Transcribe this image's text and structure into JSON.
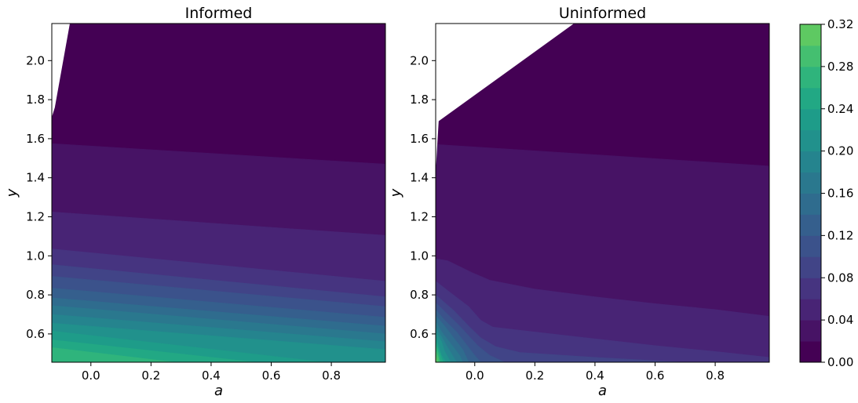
{
  "chart_data": [
    {
      "type": "contour",
      "title": "Informed",
      "xlabel": "a",
      "ylabel": "y",
      "xlim": [
        -0.13,
        0.98
      ],
      "ylim": [
        0.455,
        2.19
      ],
      "x_ticks": [
        "0.0",
        "0.2",
        "0.4",
        "0.6",
        "0.8"
      ],
      "y_ticks": [
        "0.6",
        "0.8",
        "1.0",
        "1.2",
        "1.4",
        "1.6",
        "1.8",
        "2.0"
      ],
      "undefined_region_boundary": [
        [
          -0.13,
          1.71
        ],
        [
          -0.12,
          1.76
        ],
        [
          -0.07,
          2.19
        ]
      ],
      "level_boundaries": [
        {
          "level": 0.02,
          "points": [
            [
              -0.13,
              1.575
            ],
            [
              0.98,
              1.47
            ]
          ]
        },
        {
          "level": 0.04,
          "points": [
            [
              -0.13,
              1.225
            ],
            [
              0.98,
              1.105
            ]
          ]
        },
        {
          "level": 0.06,
          "points": [
            [
              -0.13,
              1.035
            ],
            [
              0.98,
              0.87
            ]
          ]
        },
        {
          "level": 0.08,
          "points": [
            [
              -0.13,
              0.955
            ],
            [
              0.98,
              0.79
            ]
          ]
        },
        {
          "level": 0.1,
          "points": [
            [
              -0.13,
              0.895
            ],
            [
              0.98,
              0.74
            ]
          ]
        },
        {
          "level": 0.12,
          "points": [
            [
              -0.13,
              0.835
            ],
            [
              0.98,
              0.685
            ]
          ]
        },
        {
          "level": 0.14,
          "points": [
            [
              -0.13,
              0.785
            ],
            [
              0.98,
              0.64
            ]
          ]
        },
        {
          "level": 0.16,
          "points": [
            [
              -0.13,
              0.745
            ],
            [
              0.98,
              0.6
            ]
          ]
        },
        {
          "level": 0.18,
          "points": [
            [
              -0.13,
              0.7
            ],
            [
              0.98,
              0.56
            ]
          ]
        },
        {
          "level": 0.2,
          "points": [
            [
              -0.13,
              0.655
            ],
            [
              0.98,
              0.52
            ]
          ]
        },
        {
          "level": 0.22,
          "points": [
            [
              -0.13,
              0.615
            ],
            [
              0.78,
              0.455
            ]
          ]
        },
        {
          "level": 0.24,
          "points": [
            [
              -0.13,
              0.57
            ],
            [
              0.55,
              0.455
            ]
          ]
        },
        {
          "level": 0.26,
          "points": [
            [
              -0.13,
              0.53
            ],
            [
              0.28,
              0.455
            ]
          ]
        }
      ]
    },
    {
      "type": "contour",
      "title": "Uninformed",
      "xlabel": "a",
      "ylabel": "y",
      "xlim": [
        -0.13,
        0.98
      ],
      "ylim": [
        0.455,
        2.19
      ],
      "x_ticks": [
        "0.0",
        "0.2",
        "0.4",
        "0.6",
        "0.8"
      ],
      "y_ticks": [
        "0.6",
        "0.8",
        "1.0",
        "1.2",
        "1.4",
        "1.6",
        "1.8",
        "2.0"
      ],
      "undefined_region_boundary": [
        [
          -0.13,
          1.43
        ],
        [
          -0.12,
          1.69
        ],
        [
          0.33,
          2.19
        ]
      ],
      "level_boundaries": [
        {
          "level": 0.02,
          "points": [
            [
              -0.12,
              1.57
            ],
            [
              0.98,
              1.46
            ]
          ]
        },
        {
          "level": 0.04,
          "points": [
            [
              -0.13,
              0.985
            ],
            [
              -0.09,
              0.975
            ],
            [
              -0.05,
              0.945
            ],
            [
              -0.01,
              0.915
            ],
            [
              0.02,
              0.895
            ],
            [
              0.05,
              0.875
            ],
            [
              0.2,
              0.83
            ],
            [
              0.4,
              0.79
            ],
            [
              0.6,
              0.755
            ],
            [
              0.8,
              0.725
            ],
            [
              0.98,
              0.69
            ]
          ]
        },
        {
          "level": 0.06,
          "points": [
            [
              -0.13,
              0.87
            ],
            [
              -0.08,
              0.81
            ],
            [
              -0.02,
              0.74
            ],
            [
              0.02,
              0.67
            ],
            [
              0.06,
              0.635
            ],
            [
              0.2,
              0.61
            ],
            [
              0.4,
              0.575
            ],
            [
              0.6,
              0.54
            ],
            [
              0.8,
              0.51
            ],
            [
              0.98,
              0.48
            ]
          ]
        },
        {
          "level": 0.08,
          "points": [
            [
              -0.13,
              0.8
            ],
            [
              -0.07,
              0.72
            ],
            [
              -0.02,
              0.64
            ],
            [
              0.02,
              0.58
            ],
            [
              0.07,
              0.535
            ],
            [
              0.15,
              0.505
            ],
            [
              0.4,
              0.48
            ],
            [
              0.7,
              0.455
            ]
          ]
        },
        {
          "level": 0.1,
          "points": [
            [
              -0.13,
              0.76
            ],
            [
              -0.09,
              0.7
            ],
            [
              -0.05,
              0.64
            ],
            [
              -0.02,
              0.59
            ],
            [
              0.01,
              0.54
            ],
            [
              0.05,
              0.49
            ],
            [
              0.1,
              0.455
            ]
          ]
        },
        {
          "level": 0.12,
          "points": [
            [
              -0.13,
              0.725
            ],
            [
              -0.1,
              0.67
            ],
            [
              -0.06,
              0.61
            ],
            [
              -0.03,
              0.55
            ],
            [
              0.0,
              0.49
            ],
            [
              0.02,
              0.455
            ]
          ]
        },
        {
          "level": 0.14,
          "points": [
            [
              -0.13,
              0.695
            ],
            [
              -0.1,
              0.64
            ],
            [
              -0.07,
              0.58
            ],
            [
              -0.04,
              0.52
            ],
            [
              -0.02,
              0.455
            ]
          ]
        },
        {
          "level": 0.16,
          "points": [
            [
              -0.13,
              0.665
            ],
            [
              -0.11,
              0.61
            ],
            [
              -0.08,
              0.55
            ],
            [
              -0.05,
              0.49
            ],
            [
              -0.04,
              0.455
            ]
          ]
        },
        {
          "level": 0.18,
          "points": [
            [
              -0.13,
              0.635
            ],
            [
              -0.11,
              0.585
            ],
            [
              -0.09,
              0.53
            ],
            [
              -0.07,
              0.48
            ],
            [
              -0.06,
              0.455
            ]
          ]
        },
        {
          "level": 0.2,
          "points": [
            [
              -0.13,
              0.61
            ],
            [
              -0.11,
              0.56
            ],
            [
              -0.1,
              0.51
            ],
            [
              -0.08,
              0.455
            ]
          ]
        },
        {
          "level": 0.22,
          "points": [
            [
              -0.13,
              0.585
            ],
            [
              -0.12,
              0.54
            ],
            [
              -0.11,
              0.49
            ],
            [
              -0.095,
              0.455
            ]
          ]
        },
        {
          "level": 0.24,
          "points": [
            [
              -0.13,
              0.56
            ],
            [
              -0.12,
              0.52
            ],
            [
              -0.11,
              0.475
            ],
            [
              -0.105,
              0.455
            ]
          ]
        },
        {
          "level": 0.26,
          "points": [
            [
              -0.13,
              0.54
            ],
            [
              -0.12,
              0.5
            ],
            [
              -0.115,
              0.455
            ]
          ]
        },
        {
          "level": 0.28,
          "points": [
            [
              -0.13,
              0.515
            ],
            [
              -0.12,
              0.475
            ],
            [
              -0.118,
              0.455
            ]
          ]
        },
        {
          "level": 0.3,
          "points": [
            [
              -0.13,
              0.49
            ],
            [
              -0.124,
              0.455
            ]
          ]
        }
      ]
    }
  ],
  "colorbar": {
    "min": 0.0,
    "max": 0.32,
    "step": 0.02,
    "tick_labels": [
      "0.00",
      "0.04",
      "0.08",
      "0.12",
      "0.16",
      "0.20",
      "0.24",
      "0.28",
      "0.32"
    ],
    "colors": [
      "#440154",
      "#471365",
      "#482475",
      "#463480",
      "#414487",
      "#3b528b",
      "#355f8d",
      "#2f6c8e",
      "#2a788e",
      "#25848e",
      "#21918c",
      "#1e9c89",
      "#22a884",
      "#2fb47c",
      "#44bf70",
      "#5ec962"
    ]
  },
  "colors": {
    "blank": "#ffffff",
    "axis": "#000000"
  }
}
